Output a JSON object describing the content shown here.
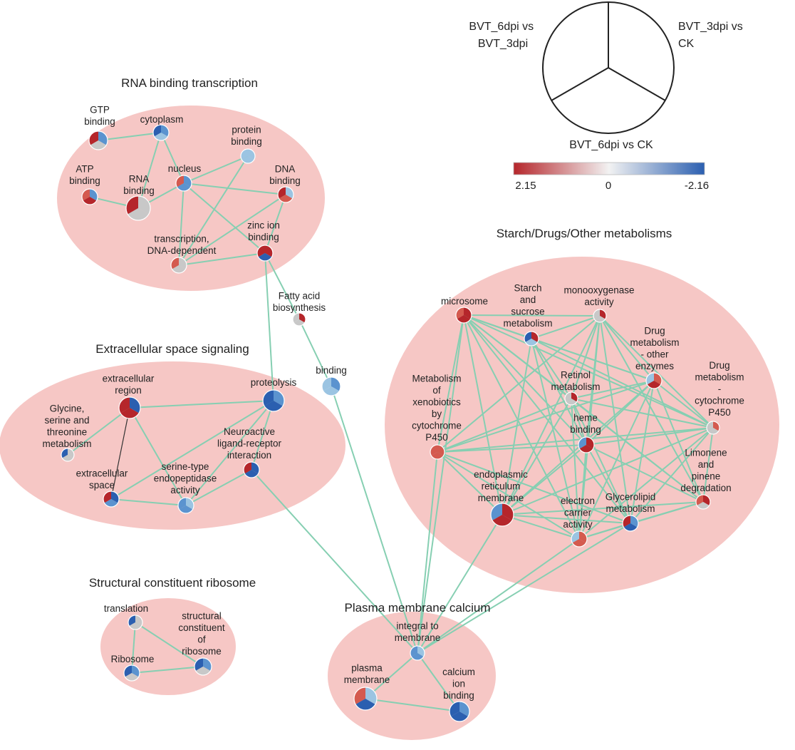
{
  "colors": {
    "up_strong": "#b5262b",
    "up_mid": "#d45a4f",
    "neutral": "#c8c8c8",
    "down_light": "#9bc4e2",
    "down_mid": "#5b93cf",
    "down_strong": "#2b5fb0",
    "edge": "#86cfb2",
    "cluster": "#f6c7c5"
  },
  "legend": {
    "comparison_a": [
      "BVT_6dpi vs",
      "BVT_3dpi"
    ],
    "comparison_b": [
      "BVT_3dpi vs",
      "CK"
    ],
    "comparison_c": [
      "BVT_6dpi vs CK"
    ],
    "scale_max": "2.15",
    "scale_mid": "0",
    "scale_min": "-2.16"
  },
  "clusters": [
    {
      "id": "rna",
      "title": "RNA binding transcription"
    },
    {
      "id": "extra",
      "title": "Extracellular space signaling"
    },
    {
      "id": "ribo",
      "title": "Structural constituent ribosome"
    },
    {
      "id": "plasma",
      "title": "Plasma membrane calcium"
    },
    {
      "id": "starch",
      "title": "Starch/Drugs/Other metabolisms"
    }
  ],
  "nodes": [
    {
      "id": "gtp",
      "label": [
        "GTP",
        "binding"
      ],
      "colors": [
        "up_strong",
        "down_mid",
        "neutral"
      ]
    },
    {
      "id": "cytoplasm",
      "label": [
        "cytoplasm"
      ],
      "colors": [
        "down_strong",
        "down_mid",
        "down_light"
      ]
    },
    {
      "id": "protein_binding",
      "label": [
        "protein",
        "binding"
      ],
      "colors": [
        "down_light",
        "down_light",
        "down_light"
      ]
    },
    {
      "id": "atp",
      "label": [
        "ATP",
        "binding"
      ],
      "colors": [
        "up_mid",
        "down_mid",
        "up_strong"
      ]
    },
    {
      "id": "rna_binding",
      "label": [
        "RNA",
        "binding"
      ],
      "colors": [
        "up_strong",
        "neutral",
        "neutral"
      ]
    },
    {
      "id": "nucleus",
      "label": [
        "nucleus"
      ],
      "colors": [
        "up_mid",
        "down_mid",
        "down_mid"
      ]
    },
    {
      "id": "dna_binding",
      "label": [
        "DNA",
        "binding"
      ],
      "colors": [
        "up_strong",
        "down_light",
        "up_mid"
      ]
    },
    {
      "id": "transcription",
      "label": [
        "transcription,",
        "DNA-dependent"
      ],
      "colors": [
        "up_mid",
        "neutral",
        "neutral"
      ]
    },
    {
      "id": "zinc",
      "label": [
        "zinc ion",
        "binding"
      ],
      "colors": [
        "up_strong",
        "up_strong",
        "down_strong"
      ]
    },
    {
      "id": "fatty",
      "label": [
        "Fatty acid",
        "biosynthesis"
      ],
      "colors": [
        "neutral",
        "up_strong",
        "neutral"
      ]
    },
    {
      "id": "binding",
      "label": [
        "binding"
      ],
      "colors": [
        "down_light",
        "down_mid",
        "down_light"
      ]
    },
    {
      "id": "extracellular_region",
      "label": [
        "extracellular",
        "region"
      ],
      "colors": [
        "up_strong",
        "down_strong",
        "up_strong"
      ]
    },
    {
      "id": "proteolysis",
      "label": [
        "proteolysis"
      ],
      "colors": [
        "down_strong",
        "down_mid",
        "down_strong"
      ]
    },
    {
      "id": "glycine",
      "label": [
        "Glycine,",
        "serine and",
        "threonine",
        "metabolism"
      ],
      "colors": [
        "down_strong",
        "neutral",
        "neutral"
      ]
    },
    {
      "id": "neuroactive",
      "label": [
        "Neuroactive",
        "ligand-receptor",
        "interaction"
      ],
      "colors": [
        "up_strong",
        "down_strong",
        "down_strong"
      ]
    },
    {
      "id": "extracellular_space",
      "label": [
        "extracellular",
        "space"
      ],
      "colors": [
        "up_strong",
        "down_strong",
        "down_mid"
      ]
    },
    {
      "id": "serine_type",
      "label": [
        "serine-type",
        "endopeptidase",
        "activity"
      ],
      "colors": [
        "down_mid",
        "down_light",
        "down_mid"
      ]
    },
    {
      "id": "translation",
      "label": [
        "translation"
      ],
      "colors": [
        "down_strong",
        "neutral",
        "neutral"
      ]
    },
    {
      "id": "structural",
      "label": [
        "structural",
        "constituent",
        "of",
        "ribosome"
      ],
      "colors": [
        "down_strong",
        "down_mid",
        "neutral"
      ]
    },
    {
      "id": "ribosome",
      "label": [
        "Ribosome"
      ],
      "colors": [
        "down_strong",
        "down_mid",
        "neutral"
      ]
    },
    {
      "id": "integral",
      "label": [
        "integral to",
        "membrane"
      ],
      "colors": [
        "down_mid",
        "down_light",
        "down_mid"
      ]
    },
    {
      "id": "plasma_membrane",
      "label": [
        "plasma",
        "membrane"
      ],
      "colors": [
        "up_mid",
        "down_light",
        "down_strong"
      ]
    },
    {
      "id": "calcium",
      "label": [
        "calcium",
        "ion",
        "binding"
      ],
      "colors": [
        "down_strong",
        "down_mid",
        "down_strong"
      ]
    },
    {
      "id": "microsome",
      "label": [
        "microsome"
      ],
      "colors": [
        "up_mid",
        "up_strong",
        "up_strong"
      ]
    },
    {
      "id": "starch_sucrose",
      "label": [
        "Starch",
        "and",
        "sucrose",
        "metabolism"
      ],
      "colors": [
        "down_strong",
        "up_strong",
        "down_light"
      ]
    },
    {
      "id": "monooxygenase",
      "label": [
        "monooxygenase",
        "activity"
      ],
      "colors": [
        "neutral",
        "up_strong",
        "neutral"
      ]
    },
    {
      "id": "drug_other",
      "label": [
        "Drug",
        "metabolism",
        "- other",
        "enzymes"
      ],
      "colors": [
        "down_light",
        "up_mid",
        "up_strong"
      ]
    },
    {
      "id": "drug_p450",
      "label": [
        "Drug",
        "metabolism",
        "-",
        "cytochrome",
        "P450"
      ],
      "colors": [
        "neutral",
        "up_mid",
        "neutral"
      ]
    },
    {
      "id": "xenobiotics",
      "label": [
        "Metabolism",
        "of",
        "xenobiotics",
        "by",
        "cytochrome",
        "P450"
      ],
      "colors": [
        "up_mid",
        "up_mid",
        "up_mid"
      ]
    },
    {
      "id": "retinol",
      "label": [
        "Retinol",
        "metabolism"
      ],
      "colors": [
        "neutral",
        "up_strong",
        "neutral"
      ]
    },
    {
      "id": "heme",
      "label": [
        "heme",
        "binding"
      ],
      "colors": [
        "down_mid",
        "up_strong",
        "up_strong"
      ]
    },
    {
      "id": "limonene",
      "label": [
        "Limonene",
        "and",
        "pinene",
        "degradation"
      ],
      "colors": [
        "up_mid",
        "up_strong",
        "neutral"
      ]
    },
    {
      "id": "er_membrane",
      "label": [
        "endoplasmic",
        "reticulum",
        "membrane"
      ],
      "colors": [
        "down_mid",
        "up_strong",
        "up_strong"
      ]
    },
    {
      "id": "electron",
      "label": [
        "electron",
        "carrier",
        "activity"
      ],
      "colors": [
        "down_light",
        "up_mid",
        "up_mid"
      ]
    },
    {
      "id": "glycerolipid",
      "label": [
        "Glycerolipid",
        "metabolism"
      ],
      "colors": [
        "up_strong",
        "down_mid",
        "down_strong"
      ]
    }
  ]
}
